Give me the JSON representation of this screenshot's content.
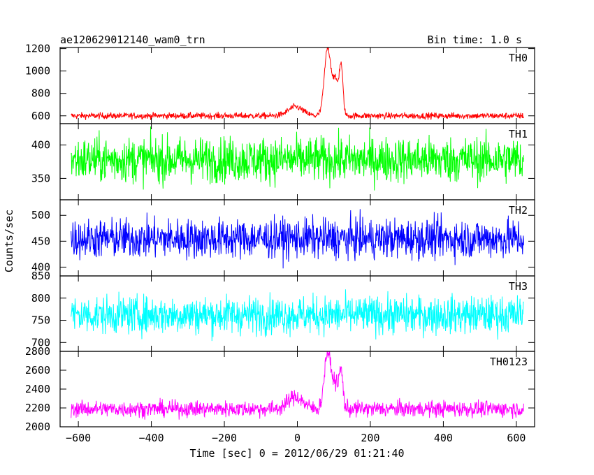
{
  "chart_data": {
    "type": "line",
    "title": "ae120629012140_wam0_trn",
    "subtitle": "Bin time: 1.0 s",
    "xlabel": "Time [sec] 0 = 2012/06/29 01:21:40",
    "ylabel": "Counts/sec",
    "xlim": [
      -650,
      650
    ],
    "x_ticks": [
      -600,
      -400,
      -200,
      0,
      200,
      400,
      600
    ],
    "x_tick_labels": [
      "−600",
      "−400",
      "−200",
      "0",
      "200",
      "400",
      "600"
    ],
    "x_range": [
      -620,
      620
    ],
    "panels": [
      {
        "name": "TH0",
        "color": "#ff0000",
        "ylim": [
          530,
          1210
        ],
        "y_ticks": [
          600,
          800,
          1000,
          1200
        ],
        "baseline": 600,
        "noise": 20,
        "features": [
          {
            "center": -5,
            "width": 20,
            "peak": 80
          },
          {
            "center": 83,
            "width": 9,
            "peak": 600
          },
          {
            "center": 105,
            "width": 8,
            "peak": 300
          },
          {
            "center": 120,
            "width": 5,
            "peak": 420
          }
        ]
      },
      {
        "name": "TH1",
        "color": "#00ff00",
        "ylim": [
          318,
          432
        ],
        "y_ticks": [
          350,
          400
        ],
        "baseline": 378,
        "noise": 24,
        "features": []
      },
      {
        "name": "TH2",
        "color": "#0000ff",
        "ylim": [
          383,
          530
        ],
        "y_ticks": [
          400,
          450,
          500
        ],
        "baseline": 455,
        "noise": 27,
        "features": []
      },
      {
        "name": "TH3",
        "color": "#00ffff",
        "ylim": [
          680,
          850
        ],
        "y_ticks": [
          700,
          750,
          800,
          850
        ],
        "baseline": 762,
        "noise": 30,
        "features": []
      },
      {
        "name": "TH0123",
        "color": "#ff00ff",
        "ylim": [
          2000,
          2800
        ],
        "y_ticks": [
          2000,
          2200,
          2400,
          2600,
          2800
        ],
        "baseline": 2190,
        "noise": 60,
        "features": [
          {
            "center": -5,
            "width": 20,
            "peak": 130
          },
          {
            "center": 83,
            "width": 9,
            "peak": 600
          },
          {
            "center": 105,
            "width": 8,
            "peak": 260
          },
          {
            "center": 120,
            "width": 5,
            "peak": 380
          }
        ]
      }
    ]
  }
}
